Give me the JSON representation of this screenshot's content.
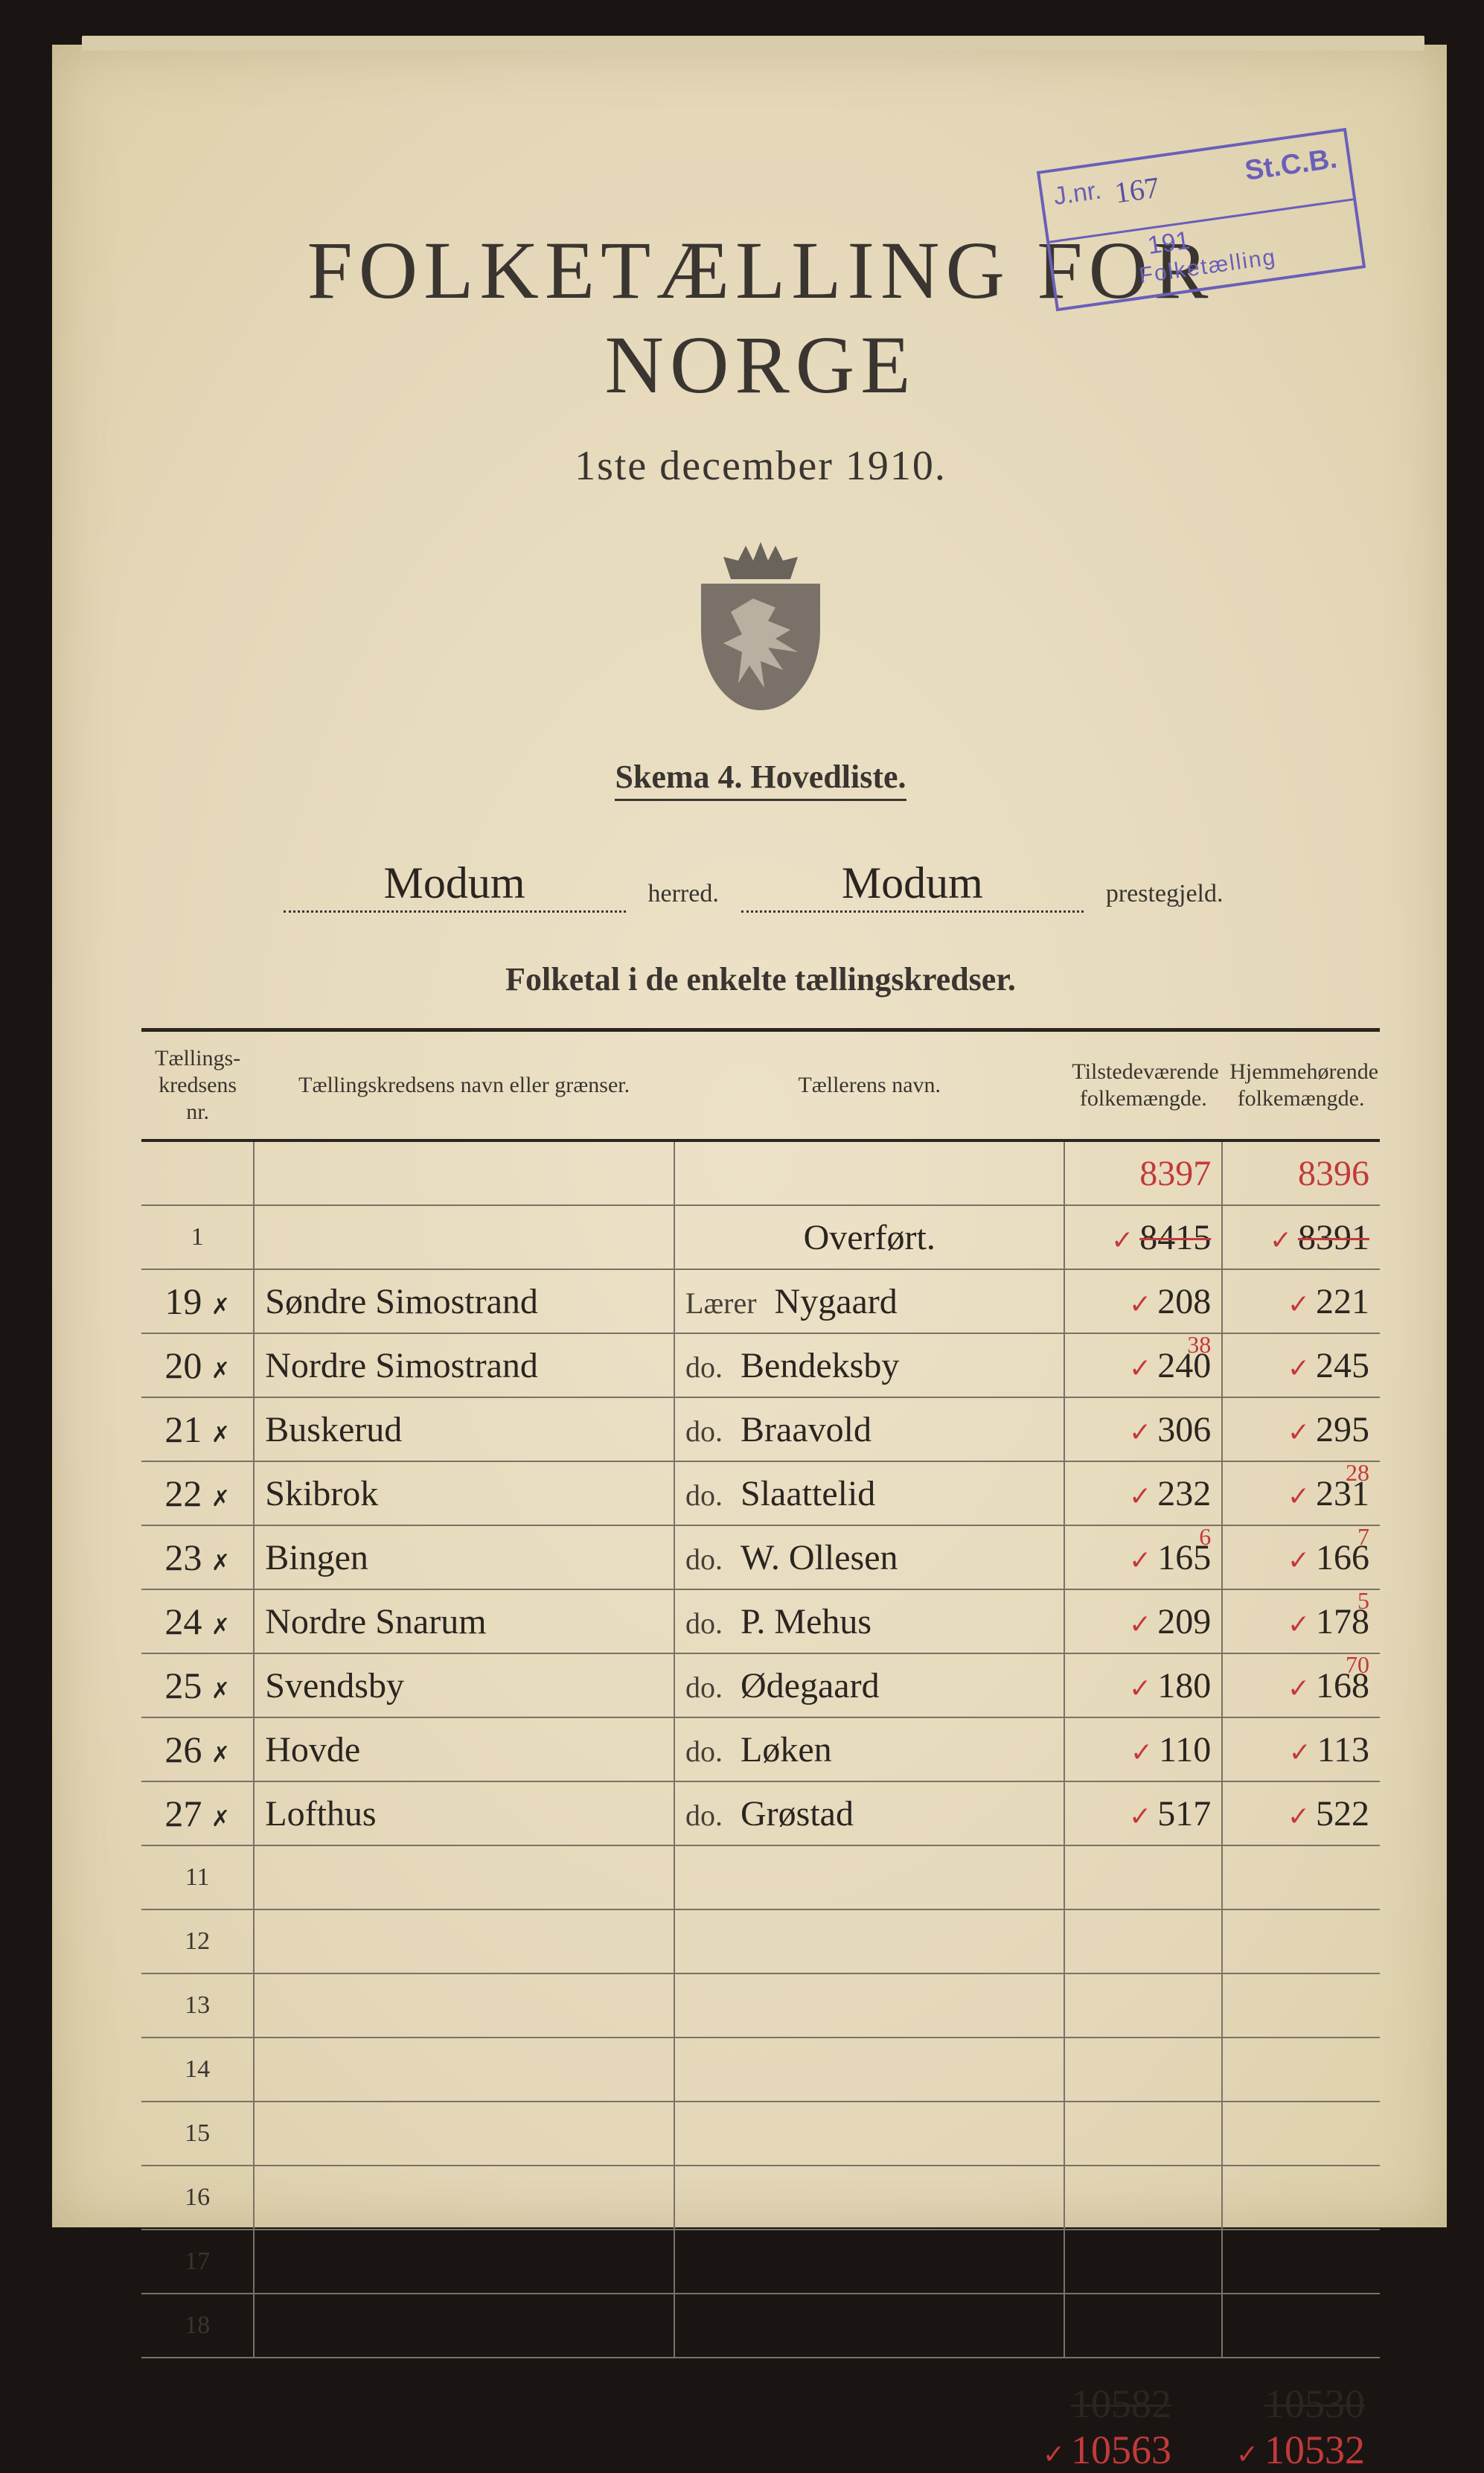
{
  "stamp": {
    "jnr_label": "J.nr.",
    "number": "167",
    "sgcb": "St.C.B.",
    "year": "191",
    "folketaelling": "Folketælling"
  },
  "title": "FOLKETÆLLING FOR NORGE",
  "subtitle": "1ste december 1910.",
  "skema": "Skema 4.   Hovedliste.",
  "herred_value": "Modum",
  "herred_label": "herred.",
  "prestegjeld_value": "Modum",
  "prestegjeld_label": "prestegjeld.",
  "section_label": "Folketal i de enkelte tællingskredser.",
  "headers": {
    "c1": "Tællings-\nkredsens nr.",
    "c2": "Tællingskredsens navn eller grænser.",
    "c3": "Tællerens navn.",
    "c4": "Tilstedeværende\nfolkemængde.",
    "c5": "Hjemmehørende\nfolkemængde."
  },
  "red_header": {
    "c4": "8397",
    "c5": "8396"
  },
  "overfort_row": {
    "printed": "1",
    "label": "Overført.",
    "c4": "8415",
    "c5": "8391",
    "struck": true
  },
  "rows": [
    {
      "nr": "19",
      "navn": "Søndre Simostrand",
      "taeller_pre": "Lærer",
      "taeller": "Nygaard",
      "c4": "208",
      "c5": "221",
      "c4_red": "",
      "c5_red": ""
    },
    {
      "nr": "20",
      "navn": "Nordre Simostrand",
      "taeller_pre": "do.",
      "taeller": "Bendeksby",
      "c4": "240",
      "c5": "245",
      "c4_red": "38",
      "c5_red": ""
    },
    {
      "nr": "21",
      "navn": "Buskerud",
      "taeller_pre": "do.",
      "taeller": "Braavold",
      "c4": "306",
      "c5": "295",
      "c4_red": "",
      "c5_red": ""
    },
    {
      "nr": "22",
      "navn": "Skibrok",
      "taeller_pre": "do.",
      "taeller": "Slaattelid",
      "c4": "232",
      "c5": "231",
      "c4_red": "",
      "c5_red": "28"
    },
    {
      "nr": "23",
      "navn": "Bingen",
      "taeller_pre": "do.",
      "taeller": "W. Ollesen",
      "c4": "165",
      "c5": "166",
      "c4_red": "6",
      "c5_red": "7"
    },
    {
      "nr": "24",
      "navn": "Nordre Snarum",
      "taeller_pre": "do.",
      "taeller": "P. Mehus",
      "c4": "209",
      "c5": "178",
      "c4_red": "",
      "c5_red": "5"
    },
    {
      "nr": "25",
      "navn": "Svendsby",
      "taeller_pre": "do.",
      "taeller": "Ødegaard",
      "c4": "180",
      "c5": "168",
      "c4_red": "",
      "c5_red": "70"
    },
    {
      "nr": "26",
      "navn": "Hovde",
      "taeller_pre": "do.",
      "taeller": "Løken",
      "c4": "110",
      "c5": "113",
      "c4_red": "",
      "c5_red": ""
    },
    {
      "nr": "27",
      "navn": "Lofthus",
      "taeller_pre": "do.",
      "taeller": "Grøstad",
      "c4": "517",
      "c5": "522",
      "c4_red": "",
      "c5_red": ""
    }
  ],
  "empty_rows": [
    "11",
    "12",
    "13",
    "14",
    "15",
    "16",
    "17",
    "18"
  ],
  "totals": {
    "c4_black": "10582",
    "c5_black": "10530",
    "c4_red": "10563",
    "c5_red": "10532"
  },
  "colors": {
    "paper": "#e8dcc0",
    "ink": "#2a2520",
    "print": "#3a3530",
    "red": "#c23a3a",
    "stamp": "#6a5fb8",
    "rule": "#7a7268",
    "background": "#1a1512"
  }
}
